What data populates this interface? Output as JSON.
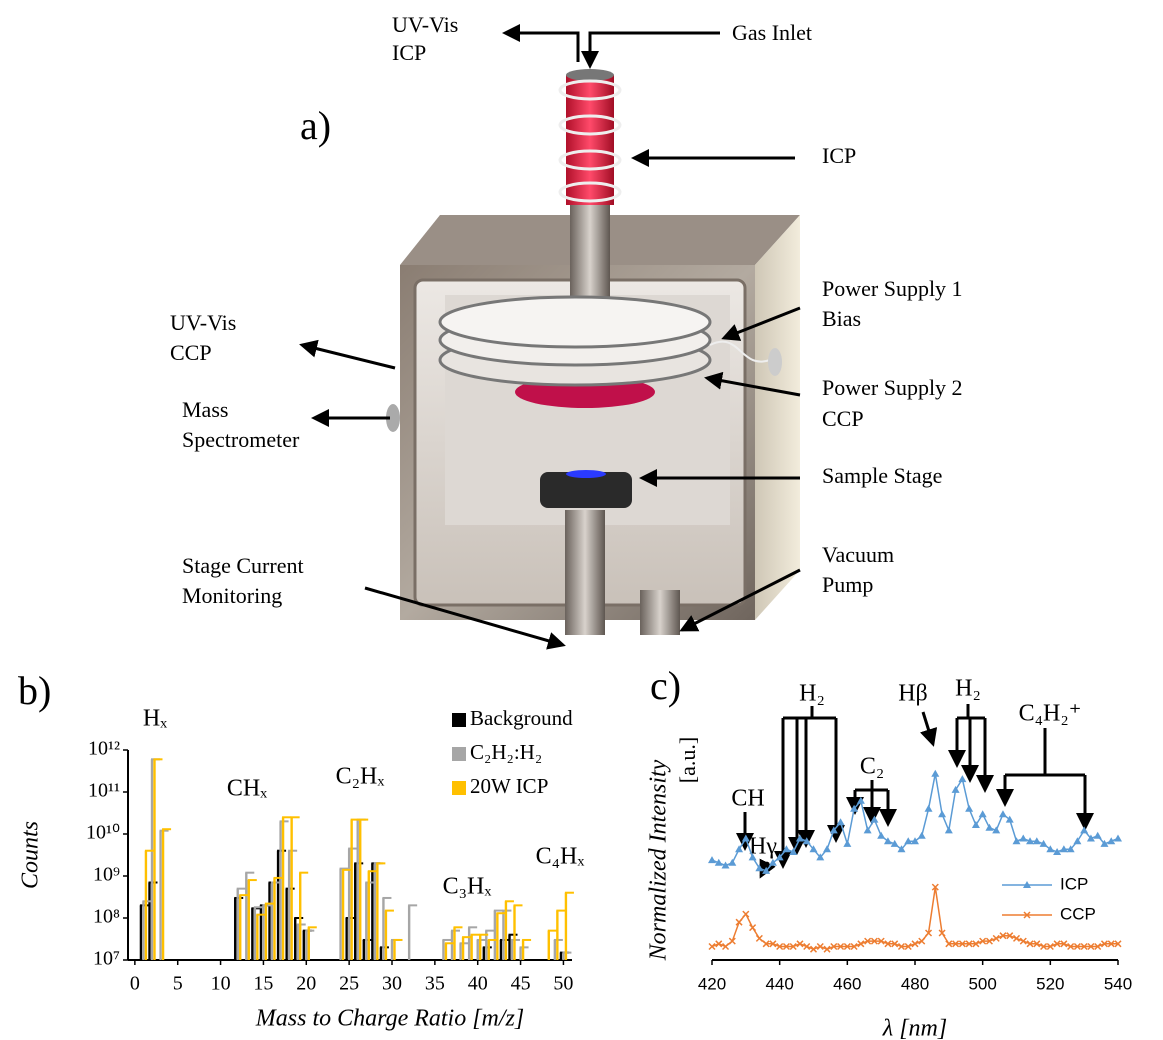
{
  "diagram": {
    "panel_label": "a)",
    "labels": [
      [
        "UV-Vis",
        "ICP"
      ],
      [
        "Gas Inlet"
      ],
      [
        "ICP"
      ],
      [
        "Power Supply 1",
        "Bias"
      ],
      [
        "Power Supply 2",
        "CCP"
      ],
      [
        "UV-Vis",
        "CCP"
      ],
      [
        "Mass",
        "Spectrometer"
      ],
      [
        "Sample Stage"
      ],
      [
        "Stage Current",
        "Monitoring"
      ],
      [
        "Vacuum",
        "Pump"
      ]
    ]
  },
  "chart_data": [
    {
      "type": "bar",
      "panel_label": "b)",
      "y_label": "Counts",
      "x_label": "Mass to Charge Ratio [m/z]",
      "annotations": [
        "Hₓ",
        "CHₓ",
        "C₂Hₓ",
        "C₃Hₓ",
        "C₄Hₓ"
      ],
      "x": [
        1,
        2,
        3,
        12,
        13,
        14,
        15,
        16,
        17,
        18,
        19,
        20,
        24,
        25,
        26,
        27,
        28,
        29,
        30,
        32,
        36,
        37,
        38,
        39,
        40,
        41,
        42,
        43,
        44,
        45,
        48,
        49,
        50
      ],
      "series": [
        {
          "name": "Background",
          "color": "#000000",
          "values": [
            200000000.0,
            700000000.0,
            null,
            300000000.0,
            null,
            170000000.0,
            200000000.0,
            700000000.0,
            4000000000.0,
            500000000.0,
            100000000.0,
            50000000.0,
            null,
            100000000.0,
            2000000000.0,
            30000000.0,
            2000000000.0,
            20000000.0,
            null,
            null,
            null,
            null,
            null,
            null,
            null,
            20000000.0,
            null,
            30000000.0,
            40000000.0,
            null,
            null,
            null,
            15000000.0
          ]
        },
        {
          "name": "C₂H₂:H₂",
          "color": "#a6a6a6",
          "values": [
            250000000.0,
            600000000000.0,
            12000000000.0,
            500000000.0,
            1200000000.0,
            180000000.0,
            200000000.0,
            700000000.0,
            20000000000.0,
            4000000000.0,
            70000000.0,
            50000000.0,
            1500000000.0,
            4500000000.0,
            22000000000.0,
            700000000.0,
            2000000000.0,
            300000000.0,
            30000000.0,
            200000000.0,
            30000000.0,
            50000000.0,
            25000000.0,
            60000000.0,
            30000000.0,
            50000000.0,
            150000000.0,
            150000000.0,
            30000000.0,
            20000000.0,
            null,
            30000000.0,
            15000000.0
          ]
        },
        {
          "name": "20W ICP",
          "color": "#ffc000",
          "values": [
            4000000000.0,
            600000000000.0,
            13000000000.0,
            350000000.0,
            800000000.0,
            120000000.0,
            220000000.0,
            900000000.0,
            25000000000.0,
            25000000000.0,
            1200000000.0,
            60000000.0,
            1400000000.0,
            22000000000.0,
            22000000000.0,
            1300000000.0,
            2000000000.0,
            150000000.0,
            30000000.0,
            null,
            25000000.0,
            60000000.0,
            35000000.0,
            40000000.0,
            40000000.0,
            30000000.0,
            130000000.0,
            250000000.0,
            200000000.0,
            30000000.0,
            50000000.0,
            150000000.0,
            400000000.0
          ]
        }
      ],
      "xlim": [
        -0.8,
        51
      ],
      "ylim": [
        10000000.0,
        1000000000000.0
      ],
      "log_scale": true,
      "xticks": [
        0,
        5,
        10,
        15,
        20,
        25,
        30,
        35,
        40,
        45,
        50
      ],
      "yticks": [
        {
          "value": 10000000.0,
          "label": "10⁷"
        },
        {
          "value": 100000000.0,
          "label": "10⁸"
        },
        {
          "value": 1000000000.0,
          "label": "10⁹"
        },
        {
          "value": 10000000000.0,
          "label": "10¹⁰"
        },
        {
          "value": 100000000000.0,
          "label": "10¹¹"
        },
        {
          "value": 1000000000000.0,
          "label": "10¹²"
        }
      ],
      "legend": "upper right"
    },
    {
      "type": "line",
      "panel_label": "c)",
      "y_label": "Normalized Intensity",
      "y_unit": "[a.u.]",
      "x_label": "λ [nm]",
      "annotations": [
        "CH",
        "Hγ",
        "H₂",
        "C₂",
        "Hβ",
        "H₂",
        "C₄H₂⁺"
      ],
      "x": [
        420,
        422,
        424,
        426,
        428,
        430,
        432,
        434,
        436,
        438,
        440,
        442,
        444,
        446,
        448,
        450,
        452,
        454,
        456,
        458,
        460,
        462,
        464,
        466,
        468,
        470,
        472,
        474,
        476,
        478,
        480,
        482,
        484,
        486,
        488,
        490,
        492,
        494,
        496,
        498,
        500,
        502,
        504,
        506,
        508,
        510,
        512,
        514,
        516,
        518,
        520,
        522,
        524,
        526,
        528,
        530,
        532,
        534,
        536,
        538,
        540
      ],
      "series": [
        {
          "name": "ICP",
          "color": "#5b9bd5",
          "marker": "triangle",
          "values": [
            0.37,
            0.36,
            0.35,
            0.36,
            0.41,
            0.45,
            0.38,
            0.34,
            0.33,
            0.36,
            0.38,
            0.41,
            0.4,
            0.45,
            0.44,
            0.41,
            0.38,
            0.41,
            0.48,
            0.51,
            0.43,
            0.56,
            0.59,
            0.48,
            0.52,
            0.46,
            0.44,
            0.43,
            0.41,
            0.44,
            0.44,
            0.46,
            0.56,
            0.69,
            0.54,
            0.48,
            0.63,
            0.67,
            0.56,
            0.5,
            0.54,
            0.49,
            0.48,
            0.54,
            0.52,
            0.44,
            0.45,
            0.44,
            0.44,
            0.43,
            0.41,
            0.4,
            0.41,
            0.41,
            0.44,
            0.48,
            0.45,
            0.46,
            0.43,
            0.44,
            0.45
          ]
        },
        {
          "name": "CCP",
          "color": "#ed7d31",
          "marker": "x",
          "values": [
            0.05,
            0.06,
            0.05,
            0.07,
            0.14,
            0.17,
            0.12,
            0.08,
            0.06,
            0.06,
            0.05,
            0.05,
            0.05,
            0.06,
            0.05,
            0.04,
            0.05,
            0.04,
            0.05,
            0.05,
            0.05,
            0.05,
            0.06,
            0.07,
            0.07,
            0.07,
            0.06,
            0.06,
            0.05,
            0.05,
            0.06,
            0.07,
            0.1,
            0.27,
            0.1,
            0.06,
            0.06,
            0.06,
            0.06,
            0.06,
            0.07,
            0.07,
            0.08,
            0.09,
            0.09,
            0.08,
            0.07,
            0.06,
            0.06,
            0.05,
            0.05,
            0.06,
            0.06,
            0.05,
            0.05,
            0.05,
            0.05,
            0.05,
            0.06,
            0.06,
            0.06
          ]
        }
      ],
      "xlim": [
        420,
        540
      ],
      "ylim": [
        0,
        1
      ],
      "xticks": [
        420,
        440,
        460,
        480,
        500,
        520,
        540
      ],
      "legend": "lower right"
    }
  ]
}
